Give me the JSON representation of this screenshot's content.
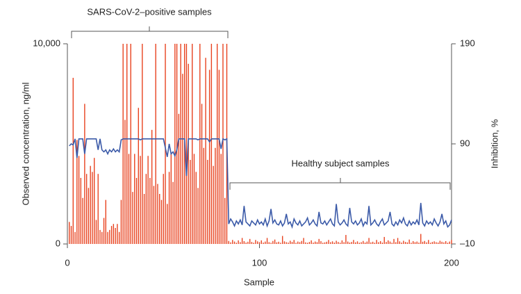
{
  "chart_data": {
    "type": "bar-line",
    "x_label": "Sample",
    "y_label": "Observed concentration, ng/ml",
    "y2_label": "Inhibition, %",
    "annotations": [
      "SARS-CoV-2–positive samples",
      "Healthy subject samples"
    ],
    "xlim": [
      0,
      200
    ],
    "xticks": [
      0,
      100,
      200
    ],
    "ylim": [
      0,
      10000
    ],
    "yticks": [
      0,
      {
        "value": 10000,
        "label": "10,000"
      }
    ],
    "y2lim": [
      -10,
      190
    ],
    "y2ticks": [
      {
        "value": -10,
        "label": "–10"
      },
      90,
      190
    ],
    "x": [
      1,
      2,
      3,
      4,
      5,
      6,
      7,
      8,
      9,
      10,
      11,
      12,
      13,
      14,
      15,
      16,
      17,
      18,
      19,
      20,
      21,
      22,
      23,
      24,
      25,
      26,
      27,
      28,
      29,
      30,
      31,
      32,
      33,
      34,
      35,
      36,
      37,
      38,
      39,
      40,
      41,
      42,
      43,
      44,
      45,
      46,
      47,
      48,
      49,
      50,
      51,
      52,
      53,
      54,
      55,
      56,
      57,
      58,
      59,
      60,
      61,
      62,
      63,
      64,
      65,
      66,
      67,
      68,
      69,
      70,
      71,
      72,
      73,
      74,
      75,
      76,
      77,
      78,
      79,
      80,
      81,
      82,
      83,
      84,
      85,
      86,
      87,
      88,
      89,
      90,
      91,
      92,
      93,
      94,
      95,
      96,
      97,
      98,
      99,
      100,
      101,
      102,
      103,
      104,
      105,
      106,
      107,
      108,
      109,
      110,
      111,
      112,
      113,
      114,
      115,
      116,
      117,
      118,
      119,
      120,
      121,
      122,
      123,
      124,
      125,
      126,
      127,
      128,
      129,
      130,
      131,
      132,
      133,
      134,
      135,
      136,
      137,
      138,
      139,
      140,
      141,
      142,
      143,
      144,
      145,
      146,
      147,
      148,
      149,
      150,
      151,
      152,
      153,
      154,
      155,
      156,
      157,
      158,
      159,
      160,
      161,
      162,
      163,
      164,
      165,
      166,
      167,
      168,
      169,
      170,
      171,
      172,
      173,
      174,
      175,
      176,
      177,
      178,
      179,
      180,
      181,
      182,
      183,
      184,
      185,
      186,
      187,
      188,
      189,
      190,
      191,
      192,
      193,
      194,
      195,
      196,
      197,
      198,
      199,
      200
    ],
    "series": [
      {
        "type": "bar",
        "color": "#e8421f",
        "values": [
          1100,
          900,
          8300,
          600,
          5200,
          4400,
          3300,
          2300,
          7000,
          3500,
          2800,
          3900,
          3600,
          4300,
          1200,
          3500,
          700,
          600,
          1300,
          2200,
          600,
          700,
          900,
          1000,
          800,
          1000,
          600,
          2200,
          10000,
          6200,
          10000,
          4500,
          10000,
          2600,
          4500,
          3300,
          6800,
          4400,
          10000,
          2500,
          3500,
          4400,
          3300,
          5700,
          2900,
          10000,
          3000,
          2500,
          2200,
          3500,
          10000,
          2000,
          3600,
          4500,
          3100,
          10000,
          10000,
          6500,
          10000,
          8500,
          10000,
          10000,
          9000,
          4200,
          10000,
          4500,
          3600,
          2800,
          10000,
          7000,
          4800,
          9300,
          4200,
          8700,
          10000,
          3900,
          4800,
          10000,
          8700,
          4500,
          10000,
          2300,
          10000,
          150,
          80,
          200,
          120,
          60,
          180,
          90,
          300,
          140,
          70,
          110,
          250,
          100,
          60,
          200,
          130,
          90,
          180,
          70,
          120,
          300,
          90,
          60,
          150,
          220,
          80,
          110,
          60,
          400,
          130,
          90,
          70,
          160,
          100,
          200,
          60,
          120,
          90,
          150,
          300,
          80,
          60,
          100,
          180,
          70,
          120,
          90,
          250,
          140,
          60,
          80,
          110,
          200,
          90,
          130,
          70,
          160,
          100,
          60,
          180,
          90,
          450,
          120,
          70,
          100,
          200,
          80,
          130,
          60,
          90,
          150,
          70,
          120,
          300,
          80,
          110,
          60,
          200,
          90,
          140,
          70,
          350,
          100,
          180,
          120,
          60,
          250,
          90,
          300,
          130,
          70,
          160,
          100,
          80,
          220,
          60,
          140,
          90,
          120,
          70,
          500,
          110,
          150,
          80,
          200,
          60,
          100,
          130,
          90,
          70,
          160,
          110,
          80,
          140,
          60,
          120,
          200
        ]
      },
      {
        "type": "line",
        "axis": "y2",
        "color": "#3b5aa8",
        "values": [
          88,
          90,
          89,
          95,
          76,
          95,
          95,
          95,
          80,
          95,
          95,
          95,
          95,
          95,
          95,
          84,
          95,
          84,
          82,
          84,
          80,
          84,
          82,
          85,
          82,
          84,
          82,
          94,
          95,
          95,
          95,
          95,
          95,
          95,
          95,
          95,
          95,
          94,
          95,
          95,
          95,
          95,
          95,
          95,
          95,
          95,
          95,
          95,
          95,
          95,
          86,
          77,
          90,
          80,
          82,
          78,
          84,
          95,
          95,
          95,
          95,
          58,
          95,
          95,
          95,
          95,
          95,
          94,
          95,
          95,
          95,
          95,
          95,
          92,
          95,
          95,
          95,
          95,
          95,
          85,
          95,
          94,
          95,
          10,
          15,
          12,
          8,
          13,
          10,
          14,
          9,
          28,
          12,
          10,
          8,
          13,
          11,
          9,
          14,
          10,
          12,
          9,
          15,
          8,
          13,
          25,
          11,
          14,
          10,
          9,
          13,
          8,
          11,
          20,
          10,
          12,
          7,
          15,
          11,
          9,
          13,
          8,
          10,
          12,
          16,
          9,
          11,
          14,
          10,
          8,
          22,
          11,
          10,
          13,
          9,
          12,
          15,
          10,
          8,
          30,
          12,
          9,
          11,
          14,
          10,
          8,
          26,
          12,
          10,
          13,
          9,
          11,
          15,
          8,
          12,
          10,
          28,
          9,
          11,
          14,
          10,
          8,
          12,
          15,
          9,
          11,
          13,
          22,
          10,
          8,
          12,
          9,
          14,
          11,
          16,
          10,
          8,
          13,
          9,
          12,
          10,
          14,
          9,
          31,
          11,
          8,
          13,
          10,
          12,
          9,
          15,
          11,
          8,
          12,
          20,
          10,
          13,
          7,
          9,
          14
        ]
      }
    ]
  }
}
